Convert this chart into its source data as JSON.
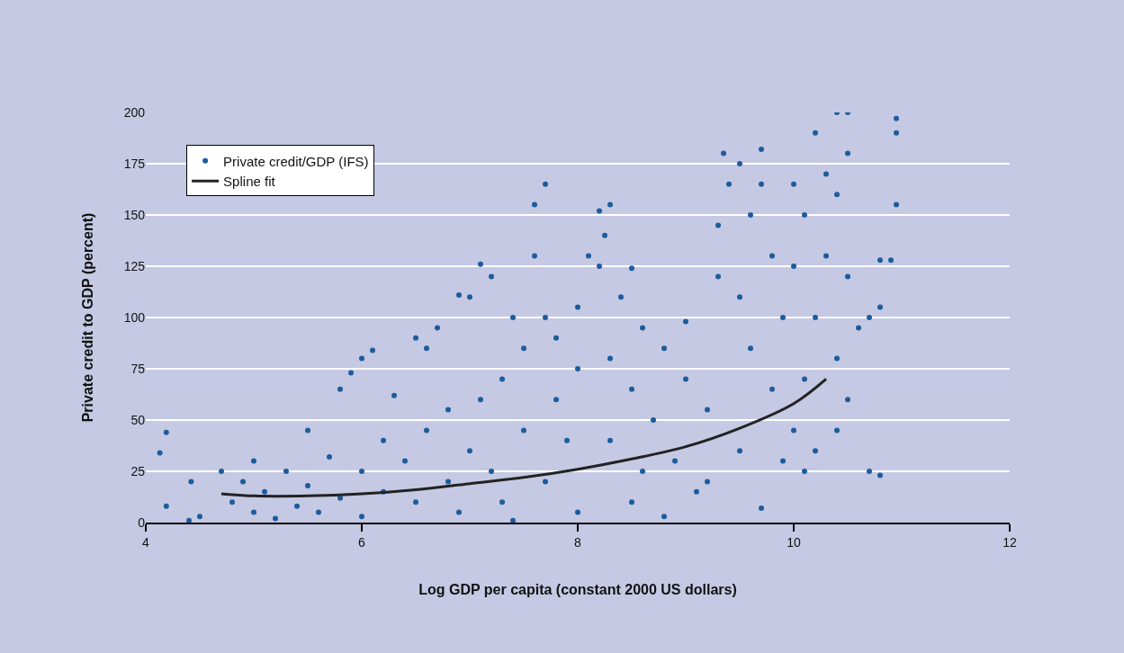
{
  "chart_data": {
    "type": "scatter",
    "xlabel": "Log GDP per capita (constant 2000 US dollars)",
    "ylabel": "Private credit to GDP (percent)",
    "xlim": [
      4,
      12
    ],
    "xticks": [
      4,
      6,
      8,
      10,
      12
    ],
    "ylim": [
      0,
      200
    ],
    "yticks": [
      0,
      25,
      50,
      75,
      100,
      125,
      150,
      175,
      200
    ],
    "grid": "y",
    "legend": "top left",
    "marker": "circle",
    "series": [
      {
        "name": "Private credit/GDP (IFS)",
        "color": "#1d5c9c",
        "x": [
          4.13,
          4.19,
          4.19,
          4.42,
          4.4,
          4.5,
          4.7,
          4.8,
          4.9,
          5.0,
          5.0,
          5.1,
          5.2,
          5.3,
          5.4,
          5.5,
          5.5,
          5.6,
          5.7,
          5.8,
          5.8,
          5.9,
          6.0,
          6.0,
          6.0,
          6.1,
          6.2,
          6.2,
          6.3,
          6.4,
          6.5,
          6.5,
          6.6,
          6.6,
          6.7,
          6.8,
          6.8,
          6.9,
          6.9,
          7.0,
          7.0,
          7.1,
          7.1,
          7.2,
          7.2,
          7.3,
          7.3,
          7.4,
          7.5,
          7.5,
          7.6,
          7.6,
          7.7,
          7.7,
          7.7,
          7.8,
          7.8,
          7.9,
          8.0,
          8.0,
          8.0,
          8.1,
          8.2,
          8.2,
          8.25,
          8.3,
          8.3,
          8.3,
          8.4,
          8.5,
          8.5,
          8.5,
          8.6,
          8.7,
          8.8,
          8.8,
          8.9,
          9.0,
          9.0,
          9.1,
          9.2,
          9.3,
          9.3,
          9.35,
          9.4,
          9.5,
          9.5,
          9.5,
          9.6,
          9.6,
          9.7,
          9.7,
          9.7,
          9.8,
          9.8,
          9.9,
          9.9,
          10.0,
          10.0,
          10.0,
          10.1,
          10.1,
          10.2,
          10.2,
          10.2,
          10.3,
          10.3,
          10.4,
          10.4,
          10.4,
          10.4,
          10.5,
          10.5,
          10.5,
          10.5,
          10.6,
          10.7,
          10.7,
          10.8,
          10.8,
          10.8,
          10.9,
          10.95,
          10.95,
          10.95,
          10.1,
          9.2,
          8.6,
          7.4
        ],
        "values": [
          34,
          44,
          8,
          20,
          1,
          3,
          25,
          10,
          20,
          5,
          30,
          15,
          2,
          25,
          8,
          45,
          18,
          5,
          32,
          65,
          12,
          73,
          80,
          25,
          3,
          84,
          40,
          15,
          62,
          30,
          90,
          10,
          85,
          45,
          95,
          55,
          20,
          111,
          5,
          110,
          35,
          126,
          60,
          120,
          25,
          70,
          10,
          100,
          85,
          45,
          155,
          130,
          165,
          100,
          20,
          90,
          60,
          40,
          5,
          75,
          105,
          130,
          152,
          125,
          140,
          155,
          80,
          40,
          110,
          124,
          65,
          10,
          95,
          50,
          85,
          3,
          30,
          98,
          70,
          15,
          55,
          120,
          145,
          180,
          165,
          175,
          110,
          35,
          150,
          85,
          182,
          165,
          7,
          65,
          130,
          100,
          30,
          125,
          165,
          45,
          150,
          70,
          190,
          100,
          35,
          170,
          130,
          200,
          160,
          80,
          45,
          200,
          180,
          120,
          60,
          95,
          100,
          25,
          128,
          105,
          23,
          128,
          197,
          190,
          155,
          25,
          20,
          25,
          1
        ]
      },
      {
        "name": "Spline fit",
        "type": "line",
        "marker": "none",
        "color": "#222222",
        "x": [
          4.7,
          5.0,
          5.5,
          6.0,
          6.5,
          7.0,
          7.5,
          8.0,
          8.5,
          9.0,
          9.5,
          10.0,
          10.3
        ],
        "values": [
          14,
          13,
          13,
          14,
          16,
          19,
          22,
          26,
          31,
          37,
          46,
          58,
          70
        ]
      }
    ]
  }
}
